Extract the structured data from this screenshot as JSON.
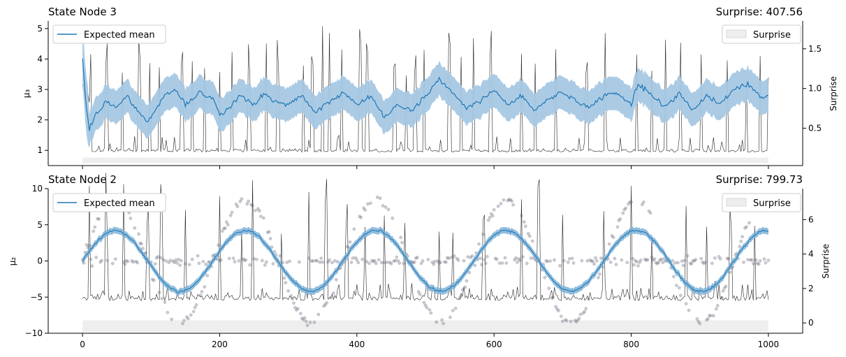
{
  "chart_data": [
    {
      "type": "line",
      "title": "State Node 3",
      "title_right": "Surprise: 407.56",
      "ylabel": "μ₃",
      "y2label": "Surprise",
      "xlim": [
        -50,
        1050
      ],
      "ylim": [
        0.5,
        5.25
      ],
      "y2lim": [
        0.03,
        1.85
      ],
      "yticks": [
        1,
        2,
        3,
        4,
        5
      ],
      "y2ticks": [
        0.5,
        1.0,
        1.5
      ],
      "xticks": [
        0,
        200,
        400,
        600,
        800,
        1000
      ],
      "legend_left": "Expected mean",
      "legend_right": "Surprise",
      "colors": {
        "mean": "#1f77b4",
        "band": "#a6c8e4",
        "surprise_line": "#222222",
        "surprise_fill": "#eeeeee"
      },
      "series": {
        "mean_t": [
          0,
          5,
          10,
          20,
          35,
          50,
          65,
          80,
          95,
          105,
          120,
          135,
          150,
          170,
          190,
          200,
          215,
          230,
          250,
          265,
          280,
          300,
          320,
          340,
          360,
          380,
          400,
          420,
          440,
          460,
          480,
          500,
          520,
          540,
          560,
          580,
          600,
          620,
          640,
          660,
          680,
          700,
          720,
          740,
          760,
          780,
          800,
          810,
          830,
          850,
          870,
          890,
          910,
          930,
          950,
          970,
          990,
          1000
        ],
        "mean_v": [
          4.0,
          2.5,
          1.7,
          2.2,
          2.6,
          2.4,
          2.8,
          2.3,
          1.9,
          2.3,
          2.8,
          3.0,
          2.5,
          2.9,
          2.7,
          2.2,
          2.4,
          2.8,
          2.5,
          2.9,
          2.6,
          2.5,
          2.8,
          2.2,
          2.6,
          2.9,
          2.5,
          2.8,
          2.1,
          2.5,
          2.3,
          2.8,
          3.3,
          2.9,
          2.4,
          2.6,
          3.0,
          2.5,
          2.8,
          2.3,
          2.7,
          2.9,
          2.6,
          2.4,
          2.8,
          2.9,
          2.5,
          3.2,
          2.8,
          2.4,
          2.9,
          2.3,
          2.8,
          2.5,
          3.0,
          3.2,
          2.7,
          2.8
        ],
        "band_halfwidth": 0.55,
        "surprise_baseline": 0.2,
        "surprise_spikes_t": [
          3,
          12,
          35,
          58,
          83,
          98,
          112,
          145,
          160,
          178,
          200,
          218,
          243,
          268,
          285,
          322,
          335,
          350,
          360,
          378,
          405,
          415,
          455,
          472,
          485,
          498,
          535,
          552,
          570,
          595,
          640,
          660,
          690,
          735,
          762,
          808,
          830,
          850,
          872,
          902,
          940,
          968,
          988,
          1000
        ]
      }
    },
    {
      "type": "line",
      "title": "State Node 2",
      "title_right": "Surprise: 799.73",
      "ylabel": "μ₂",
      "y2label": "Surprise",
      "xlim": [
        -50,
        1050
      ],
      "ylim": [
        -10,
        10
      ],
      "y2lim": [
        -0.6,
        7.8
      ],
      "yticks": [
        -10,
        -5,
        0,
        5,
        10
      ],
      "y2ticks": [
        0,
        2,
        4,
        6
      ],
      "xticks": [
        0,
        200,
        400,
        600,
        800,
        1000
      ],
      "legend_left": "Expected mean",
      "legend_right": "Surprise",
      "colors": {
        "mean": "#1f77b4",
        "band": "#7fb3d8",
        "surprise_line": "#222222",
        "surprise_fill": "#eeeeee",
        "points": "#555566"
      },
      "series": {
        "mean_amplitude": 4.2,
        "mean_period": 190,
        "points_amplitude": 8.5,
        "points_period": 190,
        "surprise_baseline": 1.3,
        "surprise_spikes_t": [
          10,
          35,
          60,
          95,
          115,
          150,
          200,
          232,
          248,
          290,
          330,
          355,
          385,
          412,
          440,
          470,
          520,
          540,
          585,
          640,
          665,
          700,
          760,
          800,
          830,
          880,
          910,
          945,
          980
        ]
      }
    }
  ],
  "x_tick_labels": [
    "0",
    "200",
    "400",
    "600",
    "800",
    "1000"
  ]
}
